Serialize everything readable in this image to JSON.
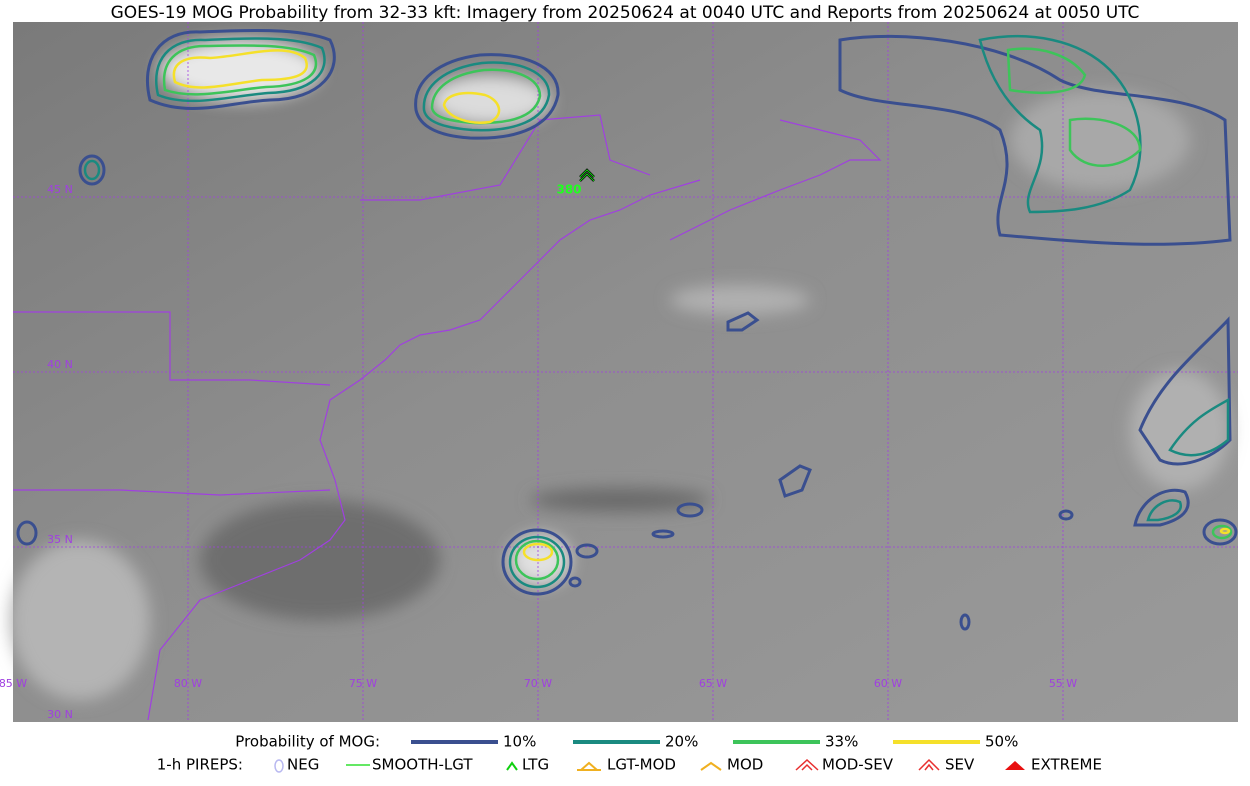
{
  "header": {
    "title": "GOES-19 MOG Probability from 32-33 kft: Imagery from 20250624 at 0040 UTC and Reports from 20250624 at 0050 UTC"
  },
  "map": {
    "lon_labels": [
      "85 W",
      "80 W",
      "75 W",
      "70 W",
      "65 W",
      "60 W",
      "55 W"
    ],
    "lat_labels": [
      "45 N",
      "40 N",
      "35 N",
      "30 N"
    ],
    "pirep_label": "380"
  },
  "legend": {
    "prob_title": "Probability of MOG:",
    "prob_items": [
      {
        "label": "10%",
        "color": "#3a4f8f"
      },
      {
        "label": "20%",
        "color": "#1a8a80"
      },
      {
        "label": "33%",
        "color": "#3dc45a"
      },
      {
        "label": "50%",
        "color": "#f5e02a"
      }
    ],
    "pirep_title": "1-h PIREPS:",
    "pirep_items": [
      {
        "label": "NEG",
        "color": "#b8b8f0"
      },
      {
        "label": "SMOOTH-LGT",
        "color": "#30e030"
      },
      {
        "label": "LTG",
        "color": "#10d010"
      },
      {
        "label": "LGT-MOD",
        "color": "#f0b020"
      },
      {
        "label": "MOD",
        "color": "#f0b020"
      },
      {
        "label": "MOD-SEV",
        "color": "#e83030"
      },
      {
        "label": "SEV",
        "color": "#e83030"
      },
      {
        "label": "EXTREME",
        "color": "#e81010"
      }
    ]
  }
}
